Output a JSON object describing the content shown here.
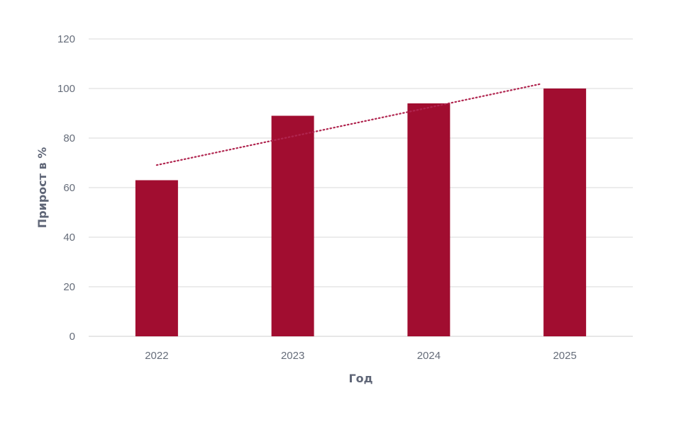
{
  "chart_data": {
    "type": "bar",
    "title": "",
    "xlabel": "Год",
    "ylabel": "Прирост в %",
    "categories": [
      "2022",
      "2023",
      "2024",
      "2025"
    ],
    "series": [
      {
        "values": [
          63,
          89,
          94,
          100
        ]
      }
    ],
    "trendline": {
      "style": "dotted",
      "type": "linear"
    },
    "ylim": [
      0,
      120
    ],
    "yticks": [
      0,
      20,
      40,
      60,
      80,
      100,
      120
    ],
    "grid": true,
    "legend": "none",
    "colors": {
      "bar": "#a10d30",
      "trend": "#b0254f",
      "grid": "#d9d9d9",
      "text": "#666d7a"
    }
  }
}
